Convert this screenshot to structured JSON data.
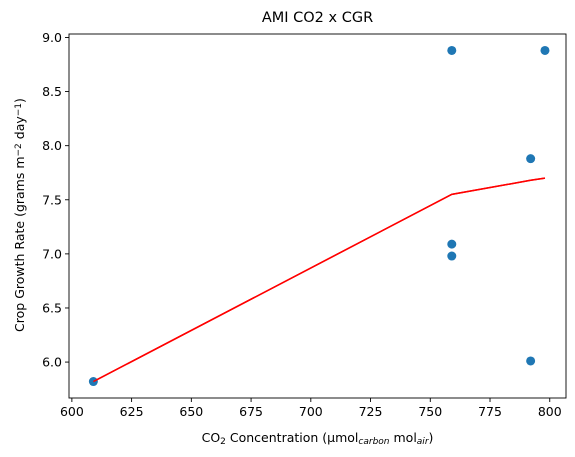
{
  "chart_data": {
    "type": "scatter",
    "title": "AMI CO2 x CGR",
    "xlabel": {
      "parts": [
        {
          "text": "CO",
          "style": "normal"
        },
        {
          "text": "2",
          "style": "sub"
        },
        {
          "text": " Concentration (μmol",
          "style": "normal"
        },
        {
          "text": "carbon",
          "style": "sub-italic"
        },
        {
          "text": " mol",
          "style": "normal"
        },
        {
          "text": "air",
          "style": "sub-italic"
        },
        {
          "text": ")",
          "style": "normal"
        }
      ]
    },
    "ylabel": {
      "parts": [
        {
          "text": "Crop Growth Rate (grams m",
          "style": "normal"
        },
        {
          "text": "−2",
          "style": "sup"
        },
        {
          "text": " day",
          "style": "normal"
        },
        {
          "text": "−1",
          "style": "sup"
        },
        {
          "text": ")",
          "style": "normal"
        }
      ]
    },
    "xlim": [
      598.8,
      806.8
    ],
    "ylim": [
      5.668,
      9.032
    ],
    "xticks": [
      600,
      625,
      650,
      675,
      700,
      725,
      750,
      775,
      800
    ],
    "yticks": [
      6.0,
      6.5,
      7.0,
      7.5,
      8.0,
      8.5,
      9.0
    ],
    "xtick_labels": [
      "600",
      "625",
      "650",
      "675",
      "700",
      "725",
      "750",
      "775",
      "800"
    ],
    "ytick_labels": [
      "6.0",
      "6.5",
      "7.0",
      "7.5",
      "8.0",
      "8.5",
      "9.0"
    ],
    "series": [
      {
        "kind": "scatter",
        "color": "#1f77b4",
        "points": [
          {
            "x": 609,
            "y": 5.82
          },
          {
            "x": 759,
            "y": 8.88
          },
          {
            "x": 759,
            "y": 7.09
          },
          {
            "x": 759,
            "y": 6.98
          },
          {
            "x": 792,
            "y": 7.88
          },
          {
            "x": 792,
            "y": 6.01
          },
          {
            "x": 798,
            "y": 8.88
          }
        ]
      },
      {
        "kind": "line",
        "color": "#ff0000",
        "points": [
          {
            "x": 609,
            "y": 5.82
          },
          {
            "x": 759,
            "y": 7.55
          },
          {
            "x": 792,
            "y": 7.68
          },
          {
            "x": 798,
            "y": 7.7
          }
        ]
      }
    ],
    "grid": false,
    "legend": "none"
  }
}
